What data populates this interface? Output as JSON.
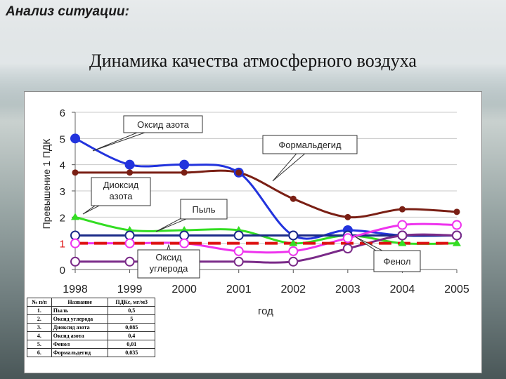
{
  "header": {
    "title": "Анализ ситуации:"
  },
  "slide": {
    "title": "Динамика качества атмосферного воздуха"
  },
  "colors": {
    "nitrogen_oxide": "#2233dd",
    "formaldehyde": "#7a1f14",
    "nitrogen_dioxide": "#33dd22",
    "dust": "#1a2a88",
    "carbon_monoxide": "#7a2a88",
    "phenol": "#ee33ee",
    "pdk_line": "#dd1111"
  },
  "chart_data": {
    "type": "line",
    "title": "",
    "xlabel": "год",
    "ylabel": "Превышение 1 ПДК",
    "x": [
      "1998",
      "1999",
      "2000",
      "2001",
      "2002",
      "2003",
      "2004",
      "2005"
    ],
    "yticks": [
      "0",
      "1",
      "2",
      "3",
      "4",
      "5",
      "6"
    ],
    "ylim": [
      0,
      6
    ],
    "grid": true,
    "series": [
      {
        "key": "nitrogen_oxide",
        "values": [
          5.0,
          4.0,
          4.0,
          3.7,
          1.3,
          1.5,
          1.3,
          1.3
        ],
        "marker": "dot"
      },
      {
        "key": "formaldehyde",
        "values": [
          3.7,
          3.7,
          3.7,
          3.7,
          2.7,
          2.0,
          2.3,
          2.2
        ],
        "marker": "dot"
      },
      {
        "key": "nitrogen_dioxide",
        "values": [
          2.0,
          1.5,
          1.5,
          1.5,
          1.0,
          1.3,
          1.0,
          1.0
        ],
        "marker": "triangle"
      },
      {
        "key": "dust",
        "values": [
          1.3,
          1.3,
          1.3,
          1.3,
          1.3,
          1.3,
          1.3,
          1.3
        ],
        "marker": "ring"
      },
      {
        "key": "carbon_monoxide",
        "values": [
          0.3,
          0.3,
          0.3,
          0.3,
          0.3,
          0.8,
          1.3,
          1.3
        ],
        "marker": "ring"
      },
      {
        "key": "phenol",
        "values": [
          1.0,
          1.0,
          1.0,
          0.7,
          0.7,
          1.2,
          1.7,
          1.7
        ],
        "marker": "ring"
      }
    ],
    "reference_line": {
      "value": 1.0,
      "label": "1"
    },
    "callouts": [
      {
        "key": "nitrogen_oxide",
        "text": "Оксид азота"
      },
      {
        "key": "formaldehyde",
        "text": "Формальдегид"
      },
      {
        "key": "nitrogen_dioxide",
        "text": "Диоксид азота"
      },
      {
        "key": "dust",
        "text": "Пыль"
      },
      {
        "key": "carbon_monoxide",
        "text": "Оксид углерода"
      },
      {
        "key": "phenol",
        "text": "Фенол"
      }
    ]
  },
  "table": {
    "headers": [
      "№ п/п",
      "Название",
      "ПДКс, мг/м3"
    ],
    "rows": [
      [
        "1.",
        "Пыль",
        "0,5"
      ],
      [
        "2.",
        "Оксид углерода",
        "5"
      ],
      [
        "3.",
        "Диоксид азота",
        "0,085"
      ],
      [
        "4.",
        "Оксид азота",
        "0,4"
      ],
      [
        "5.",
        "Фенол",
        "0,01"
      ],
      [
        "6.",
        "Формальдегид",
        "0,035"
      ]
    ]
  }
}
